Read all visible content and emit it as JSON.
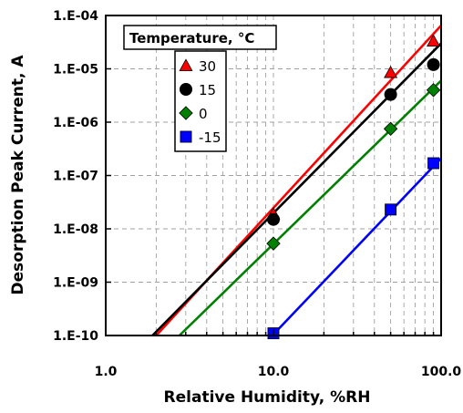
{
  "chart_data": {
    "type": "scatter",
    "xlabel": "Relative Humidity, %RH",
    "ylabel": "Desorption Peak Current, A",
    "x_scale": "log",
    "y_scale": "log",
    "xlim": [
      1.0,
      100.0
    ],
    "ylim": [
      1e-10,
      0.0001
    ],
    "x_ticks": [
      {
        "value": 1,
        "label": "1.0"
      },
      {
        "value": 10,
        "label": "10.0"
      },
      {
        "value": 100,
        "label": "100.0"
      }
    ],
    "y_ticks": [
      {
        "value": 1e-10,
        "label": "1.E-10"
      },
      {
        "value": 1e-09,
        "label": "1.E-09"
      },
      {
        "value": 1e-08,
        "label": "1.E-08"
      },
      {
        "value": 1e-07,
        "label": "1.E-07"
      },
      {
        "value": 1e-06,
        "label": "1.E-06"
      },
      {
        "value": 1e-05,
        "label": "1.E-05"
      },
      {
        "value": 0.0001,
        "label": "1.E-04"
      }
    ],
    "grid": true,
    "legend": {
      "title": "Temperature, °C",
      "position": "top-left"
    },
    "series": [
      {
        "name": "30",
        "color": "#ff0000",
        "marker": "triangle",
        "points": [
          {
            "x": 10,
            "y": 1.9e-08
          },
          {
            "x": 50,
            "y": 8.5e-06
          },
          {
            "x": 90,
            "y": 3.3e-05
          }
        ],
        "fit": {
          "x0": 2.0,
          "y0": 1e-10,
          "x1": 100,
          "y1": 6.5e-05
        }
      },
      {
        "name": "15",
        "color": "#000000",
        "marker": "circle",
        "points": [
          {
            "x": 10,
            "y": 1.5e-08
          },
          {
            "x": 50,
            "y": 3.3e-06
          },
          {
            "x": 90,
            "y": 1.2e-05
          }
        ],
        "fit": {
          "x0": 1.9,
          "y0": 1e-10,
          "x1": 100,
          "y1": 3e-05
        }
      },
      {
        "name": "0",
        "color": "#008000",
        "marker": "diamond",
        "points": [
          {
            "x": 10,
            "y": 5.3e-09
          },
          {
            "x": 50,
            "y": 7.5e-07
          },
          {
            "x": 90,
            "y": 4e-06
          }
        ],
        "fit": {
          "x0": 2.75,
          "y0": 1e-10,
          "x1": 100,
          "y1": 6e-06
        }
      },
      {
        "name": "-15",
        "color": "#0000ff",
        "marker": "square",
        "points": [
          {
            "x": 10,
            "y": 1.1e-10
          },
          {
            "x": 50,
            "y": 2.3e-08
          },
          {
            "x": 90,
            "y": 1.7e-07
          }
        ],
        "fit": {
          "x0": 10,
          "y0": 1.05e-10,
          "x1": 100,
          "y1": 2.1e-07
        }
      }
    ]
  }
}
